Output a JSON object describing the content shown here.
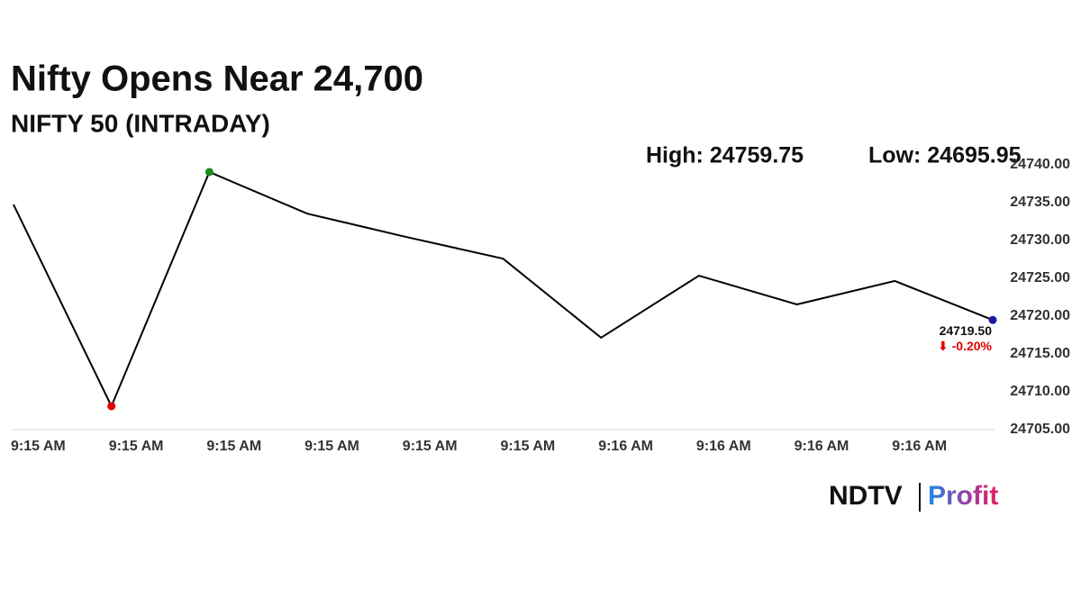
{
  "chart_data": {
    "type": "line",
    "title": "Nifty Opens Near 24,700",
    "subtitle": "NIFTY 50 (INTRADAY)",
    "annotations": [
      "High: 24759.75",
      "Low: 24695.95"
    ],
    "categories": [
      "9:15 AM",
      "9:15 AM",
      "9:15 AM",
      "9:15 AM",
      "9:15 AM",
      "9:15 AM",
      "9:16 AM",
      "9:16 AM",
      "9:16 AM",
      "9:16 AM",
      null
    ],
    "series": [
      {
        "color": "#000000",
        "values": [
          24734.75,
          24708.1,
          24739.05,
          24733.55,
          24730.5,
          24727.6,
          24717.15,
          24725.35,
          24721.55,
          24724.65,
          24719.5
        ],
        "value_labels": [
          null,
          null,
          null,
          null,
          null,
          null,
          null,
          null,
          null,
          null,
          "24719.50"
        ]
      }
    ],
    "change": "-0.20%",
    "marker_colors": {
      "max": "#1a8a1a",
      "min": "#e00000",
      "last": "#1a1aa0"
    },
    "ylim": [
      24705,
      24740
    ],
    "yticks": [
      {
        "value": 24705,
        "label": "24705.00"
      },
      {
        "value": 24710,
        "label": "24710.00"
      },
      {
        "value": 24715,
        "label": "24715.00"
      },
      {
        "value": 24720,
        "label": "24720.00"
      },
      {
        "value": 24725,
        "label": "24725.00"
      },
      {
        "value": 24730,
        "label": "24730.00"
      },
      {
        "value": 24735,
        "label": "24735.00"
      },
      {
        "value": 24740,
        "label": "24740.00"
      }
    ],
    "grid": false
  },
  "logo": {
    "left": "NDTV",
    "right": "Profit"
  }
}
